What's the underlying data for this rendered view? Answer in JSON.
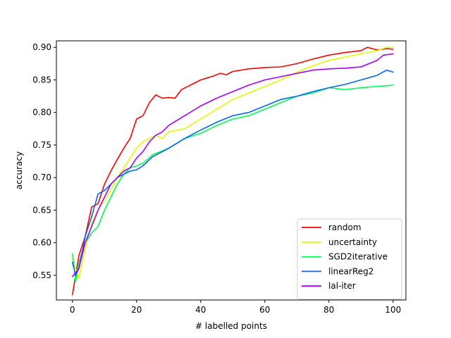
{
  "chart_data": {
    "type": "line",
    "title": "",
    "xlabel": "# labelled points",
    "ylabel": "accuracy",
    "xlim": [
      -5,
      104
    ],
    "ylim": [
      0.512,
      0.91
    ],
    "xticks": [
      0,
      20,
      40,
      60,
      80,
      100
    ],
    "yticks": [
      0.55,
      0.6,
      0.65,
      0.7,
      0.75,
      0.8,
      0.85,
      0.9
    ],
    "ytick_labels": [
      "0.55",
      "0.60",
      "0.65",
      "0.70",
      "0.75",
      "0.80",
      "0.85",
      "0.90"
    ],
    "grid": false,
    "legend_position": "lower right",
    "series": [
      {
        "name": "random",
        "color": "#ff0000",
        "x": [
          0,
          2,
          4,
          6,
          8,
          10,
          12,
          14,
          16,
          18,
          20,
          22,
          24,
          26,
          28,
          30,
          32,
          34,
          36,
          38,
          40,
          42,
          44,
          46,
          48,
          50,
          55,
          60,
          65,
          70,
          75,
          80,
          85,
          90,
          92,
          95,
          98,
          100
        ],
        "y": [
          0.52,
          0.58,
          0.61,
          0.655,
          0.66,
          0.69,
          0.71,
          0.728,
          0.745,
          0.76,
          0.79,
          0.795,
          0.815,
          0.827,
          0.822,
          0.823,
          0.822,
          0.835,
          0.84,
          0.845,
          0.85,
          0.853,
          0.856,
          0.86,
          0.858,
          0.863,
          0.867,
          0.869,
          0.87,
          0.875,
          0.882,
          0.888,
          0.892,
          0.895,
          0.9,
          0.896,
          0.898,
          0.897
        ]
      },
      {
        "name": "uncertainty",
        "color": "#ddff00",
        "x": [
          0,
          2,
          4,
          6,
          8,
          10,
          12,
          14,
          16,
          18,
          20,
          22,
          24,
          26,
          28,
          30,
          35,
          40,
          45,
          50,
          55,
          60,
          65,
          70,
          75,
          80,
          85,
          90,
          95,
          98,
          100
        ],
        "y": [
          0.575,
          0.545,
          0.59,
          0.63,
          0.65,
          0.665,
          0.68,
          0.7,
          0.715,
          0.73,
          0.745,
          0.755,
          0.76,
          0.765,
          0.76,
          0.77,
          0.775,
          0.79,
          0.805,
          0.82,
          0.83,
          0.84,
          0.85,
          0.862,
          0.872,
          0.88,
          0.885,
          0.89,
          0.895,
          0.9,
          0.9
        ]
      },
      {
        "name": "SGD2iterative",
        "color": "#00ff55",
        "x": [
          0,
          1,
          2,
          4,
          6,
          8,
          10,
          12,
          14,
          16,
          18,
          20,
          22,
          25,
          30,
          35,
          40,
          45,
          50,
          55,
          60,
          65,
          70,
          75,
          80,
          85,
          90,
          95,
          100
        ],
        "y": [
          0.583,
          0.54,
          0.57,
          0.6,
          0.615,
          0.625,
          0.65,
          0.67,
          0.69,
          0.705,
          0.715,
          0.718,
          0.722,
          0.735,
          0.745,
          0.76,
          0.768,
          0.78,
          0.79,
          0.795,
          0.805,
          0.815,
          0.825,
          0.83,
          0.838,
          0.835,
          0.838,
          0.84,
          0.842
        ]
      },
      {
        "name": "linearReg2",
        "color": "#0066ff",
        "x": [
          0,
          1,
          2,
          4,
          6,
          8,
          10,
          12,
          14,
          16,
          18,
          20,
          22,
          25,
          30,
          35,
          40,
          45,
          50,
          55,
          60,
          65,
          70,
          75,
          80,
          85,
          90,
          95,
          98,
          100
        ],
        "y": [
          0.57,
          0.55,
          0.56,
          0.61,
          0.64,
          0.675,
          0.68,
          0.69,
          0.7,
          0.705,
          0.71,
          0.712,
          0.718,
          0.732,
          0.745,
          0.76,
          0.773,
          0.785,
          0.795,
          0.8,
          0.81,
          0.82,
          0.825,
          0.832,
          0.838,
          0.843,
          0.85,
          0.857,
          0.865,
          0.862
        ]
      },
      {
        "name": "lal-iter",
        "color": "#aa00ff",
        "x": [
          0,
          2,
          4,
          6,
          8,
          10,
          12,
          14,
          16,
          18,
          20,
          22,
          24,
          26,
          28,
          30,
          35,
          40,
          45,
          50,
          55,
          60,
          65,
          70,
          75,
          80,
          85,
          90,
          95,
          97,
          100
        ],
        "y": [
          0.548,
          0.56,
          0.6,
          0.625,
          0.65,
          0.67,
          0.69,
          0.7,
          0.71,
          0.715,
          0.73,
          0.74,
          0.755,
          0.765,
          0.77,
          0.78,
          0.795,
          0.81,
          0.822,
          0.832,
          0.842,
          0.85,
          0.855,
          0.86,
          0.865,
          0.867,
          0.868,
          0.87,
          0.88,
          0.888,
          0.89
        ]
      }
    ]
  }
}
